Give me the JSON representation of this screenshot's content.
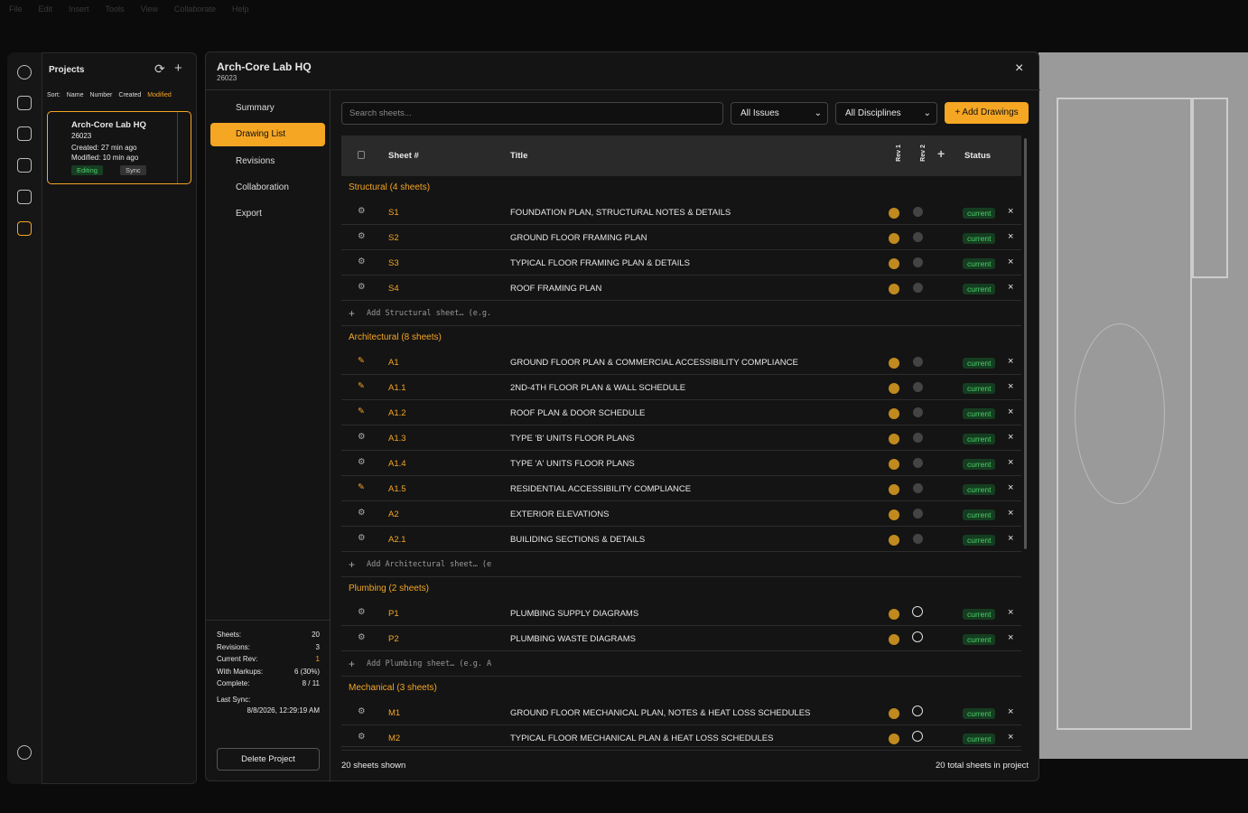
{
  "menu": [
    "File",
    "Edit",
    "Insert",
    "Tools",
    "View",
    "Collaborate",
    "Help"
  ],
  "sidebar": {
    "title": "Projects",
    "sort": {
      "label": "Sort:",
      "options": [
        "Name",
        "Number",
        "Created",
        "Modified"
      ]
    },
    "project": {
      "name": "Arch-Core Lab HQ",
      "number": "26023",
      "created": "Created: 27 min ago",
      "modified": "Modified: 10 min ago",
      "badges": [
        "Editing",
        "Sync"
      ]
    }
  },
  "modal": {
    "title": "Arch-Core Lab HQ",
    "number": "26023",
    "nav": [
      "Summary",
      "Drawing List",
      "Revisions",
      "Collaboration",
      "Export"
    ],
    "stats": [
      {
        "label": "Sheets:",
        "value": "20"
      },
      {
        "label": "Revisions:",
        "value": "3"
      },
      {
        "label": "Current Rev:",
        "value": "1"
      },
      {
        "label": "With Markups:",
        "value": "6 (30%)"
      },
      {
        "label": "Complete:",
        "value": "8 / 11"
      }
    ],
    "last_sync": {
      "label": "Last Sync:",
      "value": "8/8/2026, 12:29:19 AM"
    },
    "delete": "Delete Project",
    "toolbar": {
      "search": "Search sheets...",
      "filters": [
        "All Issues",
        "All Disciplines"
      ],
      "add": "Add Drawings"
    },
    "table": {
      "headers": [
        "Sheet #",
        "Title",
        "Rev 1",
        "Rev 2",
        "Status"
      ],
      "groups": [
        {
          "name": "Structural (4 sheets)",
          "add": "Add Structural sheet… (e.g.",
          "sheets": [
            {
              "number": "S1",
              "title": "FOUNDATION PLAN, STRUCTURAL NOTES & DETAILS",
              "status": "current",
              "icon": "view",
              "rev2": "check"
            },
            {
              "number": "S2",
              "title": "GROUND FLOOR FRAMING PLAN",
              "status": "current",
              "icon": "view",
              "rev2": "check"
            },
            {
              "number": "S3",
              "title": "TYPICAL FLOOR FRAMING PLAN & DETAILS",
              "status": "current",
              "icon": "view",
              "rev2": "check"
            },
            {
              "number": "S4",
              "title": "ROOF FRAMING PLAN",
              "status": "current",
              "icon": "view",
              "rev2": "check"
            }
          ]
        },
        {
          "name": "Architectural (8 sheets)",
          "add": "Add Architectural sheet… (e",
          "sheets": [
            {
              "number": "A1",
              "title": "GROUND FLOOR PLAN & COMMERCIAL ACCESSIBILITY COMPLIANCE",
              "status": "current",
              "icon": "edit",
              "rev2": "check"
            },
            {
              "number": "A1.1",
              "title": "2ND-4TH FLOOR PLAN & WALL SCHEDULE",
              "status": "current",
              "icon": "edit",
              "rev2": "check"
            },
            {
              "number": "A1.2",
              "title": "ROOF PLAN & DOOR SCHEDULE",
              "status": "current",
              "icon": "edit",
              "rev2": "check"
            },
            {
              "number": "A1.3",
              "title": "TYPE 'B' UNITS FLOOR PLANS",
              "status": "current",
              "icon": "view",
              "rev2": "check"
            },
            {
              "number": "A1.4",
              "title": "TYPE 'A' UNITS FLOOR PLANS",
              "status": "current",
              "icon": "view",
              "rev2": "check"
            },
            {
              "number": "A1.5",
              "title": "RESIDENTIAL ACCESSIBILITY COMPLIANCE",
              "status": "current",
              "icon": "edit",
              "rev2": "check"
            },
            {
              "number": "A2",
              "title": "EXTERIOR ELEVATIONS",
              "status": "current",
              "icon": "view",
              "rev2": "check"
            },
            {
              "number": "A2.1",
              "title": "BUILIDING SECTIONS & DETAILS",
              "status": "current",
              "icon": "view",
              "rev2": "check"
            }
          ]
        },
        {
          "name": "Plumbing (2 sheets)",
          "add": "Add Plumbing sheet… (e.g. A",
          "sheets": [
            {
              "number": "P1",
              "title": "PLUMBING SUPPLY DIAGRAMS",
              "status": "current",
              "icon": "view",
              "rev2": "open"
            },
            {
              "number": "P2",
              "title": "PLUMBING WASTE DIAGRAMS",
              "status": "current",
              "icon": "view",
              "rev2": "open"
            }
          ]
        },
        {
          "name": "Mechanical (3 sheets)",
          "sheets": [
            {
              "number": "M1",
              "title": "GROUND FLOOR MECHANICAL PLAN, NOTES & HEAT LOSS SCHEDULES",
              "status": "current",
              "icon": "view",
              "rev2": "open"
            },
            {
              "number": "M2",
              "title": "TYPICAL FLOOR MECHANICAL PLAN & HEAT LOSS SCHEDULES",
              "status": "current",
              "icon": "view",
              "rev2": "open"
            }
          ]
        }
      ]
    },
    "footer": {
      "shown": "20 sheets shown",
      "total": "20 total sheets in project"
    }
  }
}
